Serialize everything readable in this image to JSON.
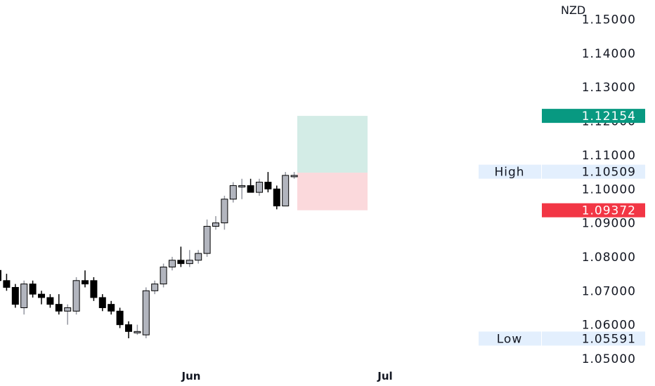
{
  "currency": "NZD",
  "price_tags": {
    "target": {
      "value": "1.12154",
      "color": "#089981"
    },
    "stop": {
      "value": "1.09372",
      "color": "#f23645"
    },
    "high": {
      "label": "High",
      "value": "1.10509"
    },
    "low": {
      "label": "Low",
      "value": "1.05591"
    }
  },
  "colors": {
    "up_candle": "#b2b5be",
    "down_candle": "#000000",
    "target_zone": "#d3ece6",
    "stop_zone": "#fbd9dc",
    "tag_bg": "#e3effd"
  },
  "chart_data": {
    "type": "candlestick",
    "y_axis": {
      "min": 1.05,
      "max": 1.15,
      "ticks": [
        "1.15000",
        "1.14000",
        "1.13000",
        "1.12000",
        "1.11000",
        "1.10000",
        "1.09000",
        "1.08000",
        "1.07000",
        "1.06000",
        "1.05000"
      ]
    },
    "x_axis": {
      "labels": [
        {
          "text": "Jun",
          "index": 28
        },
        {
          "text": "Jul",
          "index": 57
        }
      ]
    },
    "candles": [
      {
        "o": 1.076,
        "h": 1.088,
        "l": 1.072,
        "c": 1.073
      },
      {
        "o": 1.073,
        "h": 1.075,
        "l": 1.07,
        "c": 1.071
      },
      {
        "o": 1.071,
        "h": 1.072,
        "l": 1.065,
        "c": 1.066
      },
      {
        "o": 1.065,
        "h": 1.073,
        "l": 1.063,
        "c": 1.072
      },
      {
        "o": 1.072,
        "h": 1.073,
        "l": 1.068,
        "c": 1.069
      },
      {
        "o": 1.069,
        "h": 1.07,
        "l": 1.066,
        "c": 1.068
      },
      {
        "o": 1.068,
        "h": 1.069,
        "l": 1.065,
        "c": 1.066
      },
      {
        "o": 1.066,
        "h": 1.069,
        "l": 1.063,
        "c": 1.064
      },
      {
        "o": 1.064,
        "h": 1.066,
        "l": 1.06,
        "c": 1.065
      },
      {
        "o": 1.064,
        "h": 1.074,
        "l": 1.063,
        "c": 1.073
      },
      {
        "o": 1.073,
        "h": 1.076,
        "l": 1.071,
        "c": 1.072
      },
      {
        "o": 1.073,
        "h": 1.074,
        "l": 1.067,
        "c": 1.068
      },
      {
        "o": 1.068,
        "h": 1.069,
        "l": 1.064,
        "c": 1.065
      },
      {
        "o": 1.066,
        "h": 1.067,
        "l": 1.063,
        "c": 1.064
      },
      {
        "o": 1.064,
        "h": 1.065,
        "l": 1.059,
        "c": 1.06
      },
      {
        "o": 1.06,
        "h": 1.061,
        "l": 1.056,
        "c": 1.058
      },
      {
        "o": 1.058,
        "h": 1.06,
        "l": 1.057,
        "c": 1.058
      },
      {
        "o": 1.057,
        "h": 1.071,
        "l": 1.056,
        "c": 1.07
      },
      {
        "o": 1.07,
        "h": 1.073,
        "l": 1.069,
        "c": 1.072
      },
      {
        "o": 1.072,
        "h": 1.078,
        "l": 1.071,
        "c": 1.077
      },
      {
        "o": 1.077,
        "h": 1.08,
        "l": 1.076,
        "c": 1.079
      },
      {
        "o": 1.079,
        "h": 1.083,
        "l": 1.077,
        "c": 1.078
      },
      {
        "o": 1.078,
        "h": 1.082,
        "l": 1.077,
        "c": 1.079
      },
      {
        "o": 1.079,
        "h": 1.082,
        "l": 1.078,
        "c": 1.081
      },
      {
        "o": 1.081,
        "h": 1.091,
        "l": 1.08,
        "c": 1.089
      },
      {
        "o": 1.089,
        "h": 1.092,
        "l": 1.088,
        "c": 1.09
      },
      {
        "o": 1.09,
        "h": 1.098,
        "l": 1.088,
        "c": 1.097
      },
      {
        "o": 1.097,
        "h": 1.102,
        "l": 1.096,
        "c": 1.101
      },
      {
        "o": 1.101,
        "h": 1.103,
        "l": 1.097,
        "c": 1.101
      },
      {
        "o": 1.101,
        "h": 1.103,
        "l": 1.099,
        "c": 1.099
      },
      {
        "o": 1.099,
        "h": 1.103,
        "l": 1.098,
        "c": 1.102
      },
      {
        "o": 1.102,
        "h": 1.105,
        "l": 1.099,
        "c": 1.1
      },
      {
        "o": 1.1,
        "h": 1.101,
        "l": 1.094,
        "c": 1.095
      },
      {
        "o": 1.095,
        "h": 1.105,
        "l": 1.095,
        "c": 1.104
      },
      {
        "o": 1.104,
        "h": 1.105,
        "l": 1.103,
        "c": 1.104
      }
    ],
    "position_tool": {
      "entry": 1.1048,
      "target": 1.12154,
      "stop": 1.09372,
      "start_index": 36,
      "end_index": 46
    }
  }
}
